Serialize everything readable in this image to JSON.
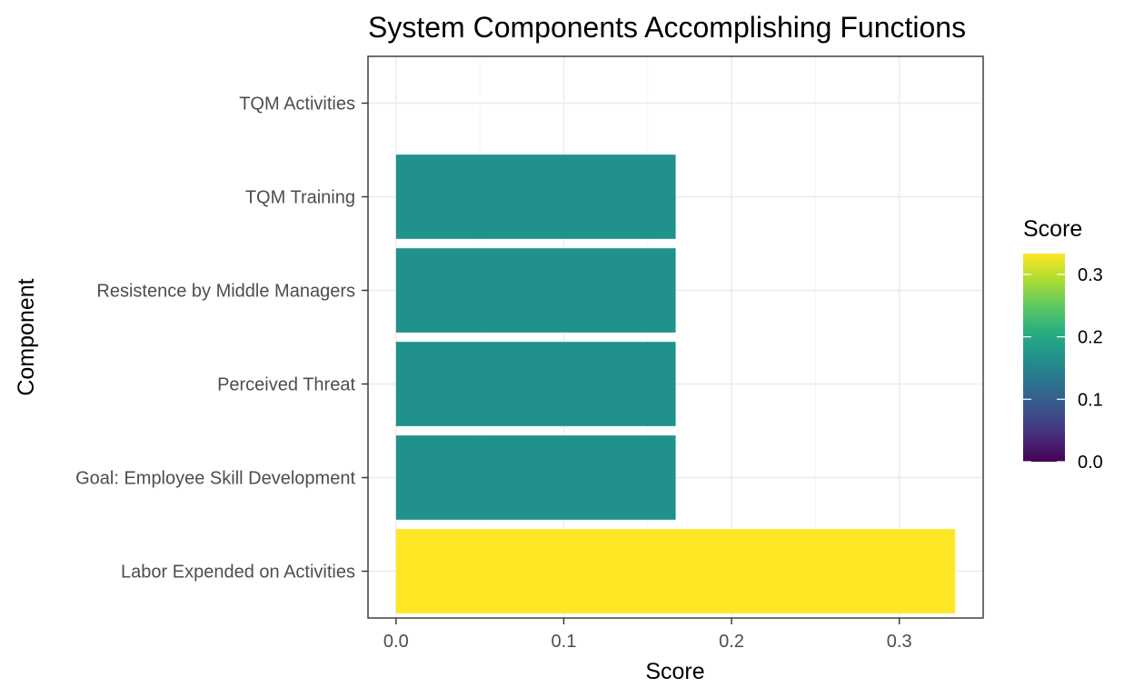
{
  "chart_data": {
    "type": "bar",
    "orientation": "horizontal",
    "title": "System Components Accomplishing Functions",
    "xlabel": "Score",
    "ylabel": "Component",
    "categories": [
      "TQM Activities",
      "TQM Training",
      "Resistence by Middle Managers",
      "Perceived Threat",
      "Goal: Employee Skill Development",
      "Labor Expended on Activities"
    ],
    "values": [
      0,
      0.1667,
      0.1667,
      0.1667,
      0.1667,
      0.3333
    ],
    "xlim": [
      -0.0167,
      0.35
    ],
    "x_ticks": [
      0,
      0.1,
      0.2,
      0.3
    ],
    "x_tick_labels": [
      "0.0",
      "0.1",
      "0.2",
      "0.3"
    ],
    "grid": true,
    "fill_by_value": true,
    "colorscale": "viridis",
    "colors": {
      "low": "#440154",
      "high": "#fde725"
    },
    "legend": {
      "title": "Score",
      "placement": "right",
      "range": [
        0,
        0.3333
      ],
      "ticks": [
        0,
        0.1,
        0.2,
        0.3
      ],
      "tick_labels": [
        "0.0",
        "0.1",
        "0.2",
        "0.3"
      ]
    }
  }
}
